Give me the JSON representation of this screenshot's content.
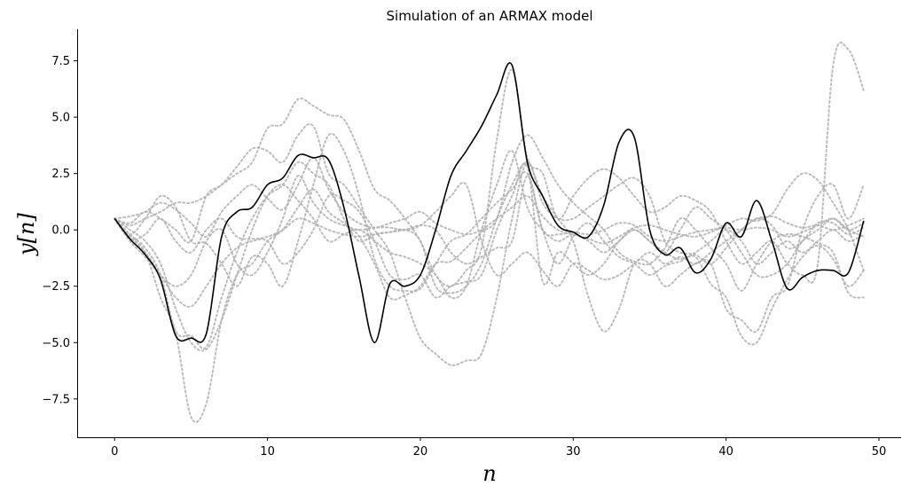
{
  "chart_data": {
    "type": "line",
    "title": "Simulation of an ARMAX model",
    "xlabel": "n",
    "ylabel": "y[n]",
    "xlim": [
      -2.45,
      51.45
    ],
    "ylim": [
      -9.2,
      8.9
    ],
    "xticks": [
      0,
      10,
      20,
      30,
      40,
      50
    ],
    "yticks": [
      -7.5,
      -5.0,
      -2.5,
      0.0,
      2.5,
      5.0,
      7.5
    ],
    "xtick_labels": [
      "0",
      "10",
      "20",
      "30",
      "40",
      "50"
    ],
    "ytick_labels": [
      "−7.5",
      "−5.0",
      "−2.5",
      "0.0",
      "2.5",
      "5.0",
      "7.5"
    ],
    "grid": false,
    "spines": "left-bottom",
    "colors": {
      "main": "#000000",
      "simulations": "#b0b0b0"
    },
    "main_series": {
      "style": "solid",
      "x": [
        0,
        1,
        2,
        3,
        4,
        5,
        6,
        7,
        8,
        9,
        10,
        11,
        12,
        13,
        14,
        15,
        16,
        17,
        18,
        19,
        20,
        21,
        22,
        23,
        24,
        25,
        26,
        27,
        28,
        29,
        30,
        31,
        32,
        33,
        34,
        35,
        36,
        37,
        38,
        39,
        40,
        41,
        42,
        43,
        44,
        45,
        46,
        47,
        48,
        49
      ],
      "y": [
        0.5,
        -0.4,
        -1.1,
        -2.2,
        -4.7,
        -4.8,
        -4.6,
        -0.3,
        0.8,
        1.0,
        2.0,
        2.3,
        3.3,
        3.2,
        3.1,
        1.0,
        -2.1,
        -5.0,
        -2.4,
        -2.5,
        -2.0,
        0.0,
        2.4,
        3.5,
        4.6,
        6.0,
        7.3,
        3.0,
        1.5,
        0.2,
        -0.1,
        -0.3,
        1.1,
        3.9,
        4.1,
        0.0,
        -1.1,
        -0.8,
        -1.9,
        -1.3,
        0.3,
        -0.3,
        1.3,
        -0.5,
        -2.6,
        -2.1,
        -1.8,
        -1.8,
        -1.9,
        0.4
      ]
    },
    "simulations": [
      {
        "style": "dotted",
        "y": [
          0.5,
          -0.2,
          0.5,
          1.5,
          1.0,
          -0.5,
          -0.6,
          -1.5,
          -2.5,
          -1.2,
          -1.5,
          -2.5,
          -0.5,
          2.0,
          4.2,
          3.5,
          1.5,
          -1.3,
          -2.5,
          -2.7,
          -2.6,
          -1.5,
          -0.5,
          -0.2,
          0.5,
          1.2,
          1.8,
          2.5,
          0.0,
          -1.5,
          -0.3,
          0.3,
          -0.5,
          -1.2,
          -1.5,
          -2.0,
          -1.6,
          -1.4,
          -1.2,
          -2.4,
          -3.0,
          -4.7,
          -5.0,
          -3.5,
          -2.2,
          -1.2,
          -0.7,
          -1.3,
          -2.5,
          -1.8
        ]
      },
      {
        "style": "dotted",
        "y": [
          0.5,
          -0.3,
          -1.0,
          -3.0,
          -4.6,
          -8.3,
          -7.7,
          -4.0,
          -2.0,
          -1.5,
          -0.5,
          0.0,
          1.0,
          1.8,
          0.8,
          0.3,
          -0.3,
          -1.5,
          -3.0,
          -2.9,
          -2.5,
          -1.5,
          -1.4,
          -0.8,
          -0.1,
          0.5,
          3.0,
          4.2,
          3.2,
          2.0,
          1.2,
          0.6,
          0.0,
          -1.0,
          -1.4,
          -1.5,
          -0.8,
          0.5,
          0.0,
          -0.8,
          -1.5,
          -2.7,
          -1.5,
          -0.5,
          -0.2,
          -0.3,
          -0.6,
          -1.0,
          -2.8,
          -3.0
        ]
      },
      {
        "style": "dotted",
        "y": [
          0.5,
          0.3,
          0.8,
          0.5,
          0.0,
          -0.5,
          1.5,
          2.0,
          2.8,
          3.6,
          3.5,
          3.0,
          4.2,
          4.6,
          2.5,
          2.0,
          1.0,
          0.0,
          -1.0,
          -3.0,
          -4.8,
          -5.5,
          -6.0,
          -5.8,
          -5.5,
          -3.0,
          0.5,
          3.0,
          1.2,
          0.5,
          0.5,
          1.0,
          1.5,
          2.0,
          2.3,
          1.5,
          -0.5,
          -1.0,
          -1.1,
          -1.5,
          -0.8,
          0.0,
          0.5,
          0.7,
          1.8,
          2.5,
          2.2,
          1.2,
          0.0,
          -1.8
        ]
      },
      {
        "style": "dotted",
        "y": [
          0.5,
          -0.5,
          -1.2,
          -2.0,
          -2.5,
          -2.0,
          -0.5,
          0.0,
          -1.5,
          -2.0,
          -1.0,
          0.5,
          2.4,
          1.2,
          0.5,
          0.2,
          0.0,
          0.1,
          0.1,
          0.0,
          0.2,
          0.8,
          1.5,
          2.0,
          -0.5,
          -2.0,
          -1.5,
          -1.0,
          -1.8,
          -2.5,
          -1.5,
          -1.8,
          -2.2,
          -2.0,
          -1.5,
          -1.0,
          -1.5,
          -1.2,
          -1.5,
          -1.0,
          -0.5,
          0.0,
          0.5,
          0.2,
          -0.8,
          -0.5,
          0.3,
          0.3,
          -0.2,
          0.1
        ]
      },
      {
        "style": "dotted",
        "y": [
          0.5,
          -0.4,
          -0.2,
          0.5,
          -0.5,
          -1.0,
          0.0,
          0.5,
          -0.3,
          -0.4,
          -0.3,
          0.0,
          0.5,
          0.3,
          0.0,
          -0.2,
          -0.3,
          -0.2,
          -0.1,
          0.0,
          0.2,
          0.0,
          -1.0,
          -1.5,
          -1.2,
          -0.8,
          -0.5,
          2.4,
          0.0,
          -0.2,
          -0.1,
          -0.2,
          0.0,
          0.3,
          0.2,
          -0.3,
          -0.5,
          -0.3,
          -0.1,
          0.0,
          0.1,
          0.0,
          0.1,
          0.0,
          -0.3,
          -0.1,
          0.2,
          0.5,
          0.0,
          0.3
        ]
      },
      {
        "style": "dotted",
        "y": [
          0.5,
          -0.3,
          -1.0,
          -2.0,
          -3.0,
          -3.4,
          -2.5,
          -1.5,
          -0.8,
          -0.5,
          -0.5,
          -1.5,
          -1.0,
          0.0,
          1.5,
          1.3,
          0.8,
          -0.5,
          -2.0,
          -2.2,
          -2.0,
          -3.0,
          -2.5,
          -2.3,
          -2.0,
          0.0,
          1.5,
          2.8,
          -2.3,
          -1.0,
          -1.5,
          -2.0,
          -1.5,
          -0.5,
          0.0,
          -0.5,
          -1.0,
          -1.3,
          -1.0,
          -0.5,
          0.0,
          -0.5,
          -1.5,
          -1.0,
          -0.5,
          -1.0,
          -0.5,
          0.0,
          -0.5,
          -0.2
        ]
      },
      {
        "style": "dotted",
        "y": [
          0.5,
          0.0,
          -0.5,
          -1.5,
          -3.5,
          -5.0,
          -5.3,
          -4.0,
          -2.0,
          0.0,
          1.5,
          2.0,
          1.3,
          0.5,
          -0.5,
          -0.2,
          0.0,
          -0.5,
          -1.0,
          -1.2,
          -1.5,
          -2.0,
          -3.0,
          -2.5,
          0.0,
          2.0,
          3.5,
          1.0,
          0.0,
          -0.5,
          -0.2,
          -0.5,
          -1.0,
          -0.5,
          0.0,
          -0.5,
          -1.0,
          0.0,
          1.0,
          0.5,
          0.0,
          -1.0,
          -2.0,
          -2.0,
          -1.5,
          -0.5,
          0.0,
          0.5,
          0.0,
          -0.3
        ]
      },
      {
        "style": "dotted",
        "y": [
          0.5,
          0.6,
          0.8,
          1.2,
          0.9,
          0.3,
          -0.3,
          0.8,
          1.5,
          2.0,
          1.4,
          0.9,
          2.0,
          3.2,
          1.8,
          0.8,
          0.3,
          0.1,
          0.3,
          0.5,
          0.8,
          0.3,
          0.0,
          -0.2,
          0.0,
          0.5,
          1.0,
          1.5,
          0.6,
          0.0,
          -0.2,
          -0.4,
          -0.6,
          -0.3,
          0.1,
          0.2,
          0.0,
          -0.2,
          -0.3,
          -0.1,
          0.2,
          0.5,
          0.4,
          0.6,
          0.3,
          0.1,
          0.2,
          0.0,
          0.2,
          0.5
        ]
      },
      {
        "style": "dotted",
        "y": [
          0.5,
          0.2,
          0.5,
          0.8,
          1.2,
          1.2,
          1.5,
          2.0,
          2.5,
          3.0,
          4.5,
          4.7,
          5.8,
          5.5,
          5.1,
          4.9,
          3.5,
          1.8,
          1.3,
          0.5,
          -0.5,
          -2.0,
          -2.5,
          -1.8,
          -0.8,
          4.0,
          7.1,
          3.2,
          2.5,
          0.5,
          1.5,
          2.3,
          2.7,
          2.3,
          1.5,
          0.8,
          1.0,
          1.5,
          1.3,
          0.8,
          -0.5,
          -1.5,
          -1.0,
          -0.5,
          -1.5,
          -2.0,
          -1.5,
          7.3,
          8.0,
          6.2
        ]
      },
      {
        "style": "dotted",
        "y": [
          0.5,
          -0.2,
          -0.8,
          -2.0,
          -4.5,
          -4.7,
          -5.2,
          -3.0,
          -1.0,
          0.5,
          1.5,
          2.0,
          3.0,
          2.5,
          2.0,
          0.5,
          -0.5,
          -0.2,
          -0.1,
          0.0,
          -0.5,
          -2.5,
          -2.8,
          -2.5,
          -1.5,
          0.5,
          2.0,
          3.0,
          1.5,
          0.5,
          -0.5,
          -3.0,
          -4.5,
          -3.5,
          -1.5,
          -1.5,
          -2.5,
          -2.0,
          -1.5,
          -1.5,
          -3.5,
          -4.0,
          -4.5,
          -3.0,
          -2.5,
          0.0,
          1.5,
          2.0,
          0.5,
          2.0
        ]
      }
    ]
  }
}
